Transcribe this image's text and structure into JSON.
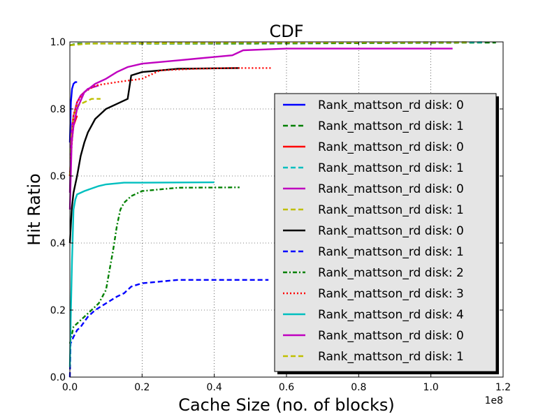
{
  "chart_data": {
    "type": "line",
    "title": "CDF",
    "xlabel": "Cache Size (no. of blocks)",
    "ylabel": "Hit Ratio",
    "x_exponent_label": "1e8",
    "xlim": [
      0,
      1.2
    ],
    "ylim": [
      0,
      1.0
    ],
    "x_ticks": [
      "0.0",
      "0.2",
      "0.4",
      "0.6",
      "0.8",
      "1.0",
      "1.2"
    ],
    "y_ticks": [
      "0.0",
      "0.2",
      "0.4",
      "0.6",
      "0.8",
      "1.0"
    ],
    "grid": true,
    "legend_position": "lower-right",
    "series": [
      {
        "name": "Rank_mattson_rd disk: 0",
        "color": "#0000ff",
        "dash": "solid",
        "points": [
          [
            0,
            0.7
          ],
          [
            0.003,
            0.82
          ],
          [
            0.006,
            0.86
          ],
          [
            0.01,
            0.875
          ],
          [
            0.015,
            0.88
          ],
          [
            0.02,
            0.88
          ]
        ]
      },
      {
        "name": "Rank_mattson_rd disk: 1",
        "color": "#008000",
        "dash": "dashed",
        "points": [
          [
            0,
            0.99
          ],
          [
            0.02,
            0.995
          ],
          [
            0.5,
            0.995
          ],
          [
            1.18,
            0.998
          ]
        ]
      },
      {
        "name": "Rank_mattson_rd disk: 0",
        "color": "#ff0000",
        "dash": "solid",
        "points": [
          [
            0,
            0.6
          ],
          [
            0.005,
            0.7
          ],
          [
            0.01,
            0.75
          ],
          [
            0.02,
            0.78
          ]
        ]
      },
      {
        "name": "Rank_mattson_rd disk: 1",
        "color": "#00bfbf",
        "dash": "dashed",
        "points": [
          [
            0,
            0.99
          ],
          [
            0.05,
            0.995
          ],
          [
            0.5,
            0.998
          ],
          [
            1.15,
            0.999
          ]
        ]
      },
      {
        "name": "Rank_mattson_rd disk: 0",
        "color": "#bf00bf",
        "dash": "solid",
        "points": [
          [
            0,
            0.55
          ],
          [
            0.003,
            0.7
          ],
          [
            0.006,
            0.75
          ],
          [
            0.01,
            0.78
          ],
          [
            0.02,
            0.82
          ],
          [
            0.03,
            0.84
          ],
          [
            0.05,
            0.86
          ],
          [
            0.08,
            0.87
          ]
        ]
      },
      {
        "name": "Rank_mattson_rd disk: 1",
        "color": "#bfbf00",
        "dash": "dashed",
        "points": [
          [
            0,
            0.6
          ],
          [
            0.005,
            0.72
          ],
          [
            0.01,
            0.78
          ],
          [
            0.02,
            0.81
          ],
          [
            0.04,
            0.82
          ],
          [
            0.06,
            0.83
          ],
          [
            0.085,
            0.83
          ]
        ]
      },
      {
        "name": "Rank_mattson_rd disk: 0",
        "color": "#000000",
        "dash": "solid",
        "points": [
          [
            0,
            0.4
          ],
          [
            0.005,
            0.5
          ],
          [
            0.01,
            0.55
          ],
          [
            0.02,
            0.6
          ],
          [
            0.03,
            0.66
          ],
          [
            0.04,
            0.7
          ],
          [
            0.05,
            0.73
          ],
          [
            0.07,
            0.77
          ],
          [
            0.1,
            0.8
          ],
          [
            0.13,
            0.815
          ],
          [
            0.16,
            0.83
          ],
          [
            0.17,
            0.9
          ],
          [
            0.2,
            0.91
          ],
          [
            0.25,
            0.915
          ],
          [
            0.3,
            0.92
          ],
          [
            0.47,
            0.922
          ]
        ]
      },
      {
        "name": "Rank_mattson_rd disk: 1",
        "color": "#0000ff",
        "dash": "dashed",
        "points": [
          [
            0,
            0.0
          ],
          [
            0.002,
            0.1
          ],
          [
            0.01,
            0.12
          ],
          [
            0.02,
            0.14
          ],
          [
            0.03,
            0.15
          ],
          [
            0.05,
            0.18
          ],
          [
            0.07,
            0.2
          ],
          [
            0.1,
            0.22
          ],
          [
            0.13,
            0.24
          ],
          [
            0.15,
            0.25
          ],
          [
            0.17,
            0.27
          ],
          [
            0.2,
            0.28
          ],
          [
            0.25,
            0.285
          ],
          [
            0.3,
            0.29
          ],
          [
            0.55,
            0.29
          ]
        ]
      },
      {
        "name": "Rank_mattson_rd disk: 2",
        "color": "#008000",
        "dash": "dashdot",
        "points": [
          [
            0,
            0.1
          ],
          [
            0.01,
            0.15
          ],
          [
            0.04,
            0.18
          ],
          [
            0.08,
            0.22
          ],
          [
            0.1,
            0.26
          ],
          [
            0.11,
            0.32
          ],
          [
            0.12,
            0.38
          ],
          [
            0.13,
            0.45
          ],
          [
            0.14,
            0.5
          ],
          [
            0.15,
            0.52
          ],
          [
            0.17,
            0.54
          ],
          [
            0.2,
            0.555
          ],
          [
            0.25,
            0.56
          ],
          [
            0.3,
            0.565
          ],
          [
            0.47,
            0.566
          ]
        ]
      },
      {
        "name": "Rank_mattson_rd disk: 3",
        "color": "#ff0000",
        "dash": "dotted",
        "points": [
          [
            0,
            0.6
          ],
          [
            0.01,
            0.78
          ],
          [
            0.02,
            0.82
          ],
          [
            0.04,
            0.85
          ],
          [
            0.07,
            0.87
          ],
          [
            0.1,
            0.875
          ],
          [
            0.13,
            0.88
          ],
          [
            0.2,
            0.89
          ],
          [
            0.25,
            0.915
          ],
          [
            0.35,
            0.92
          ],
          [
            0.45,
            0.922
          ],
          [
            0.56,
            0.922
          ]
        ]
      },
      {
        "name": "Rank_mattson_rd disk: 4",
        "color": "#00bfbf",
        "dash": "solid",
        "points": [
          [
            0,
            0.03
          ],
          [
            0.003,
            0.2
          ],
          [
            0.006,
            0.35
          ],
          [
            0.01,
            0.5
          ],
          [
            0.015,
            0.53
          ],
          [
            0.02,
            0.545
          ],
          [
            0.04,
            0.555
          ],
          [
            0.08,
            0.57
          ],
          [
            0.1,
            0.575
          ],
          [
            0.15,
            0.58
          ],
          [
            0.2,
            0.58
          ],
          [
            0.4,
            0.581
          ]
        ]
      },
      {
        "name": "Rank_mattson_rd disk: 0",
        "color": "#bf00bf",
        "dash": "solid",
        "points": [
          [
            0,
            0.5
          ],
          [
            0.005,
            0.7
          ],
          [
            0.01,
            0.75
          ],
          [
            0.02,
            0.8
          ],
          [
            0.04,
            0.85
          ],
          [
            0.07,
            0.875
          ],
          [
            0.1,
            0.89
          ],
          [
            0.13,
            0.91
          ],
          [
            0.16,
            0.925
          ],
          [
            0.2,
            0.935
          ],
          [
            0.25,
            0.94
          ],
          [
            0.3,
            0.945
          ],
          [
            0.35,
            0.95
          ],
          [
            0.4,
            0.955
          ],
          [
            0.45,
            0.96
          ],
          [
            0.48,
            0.975
          ],
          [
            0.6,
            0.98
          ],
          [
            1.06,
            0.98
          ]
        ]
      },
      {
        "name": "Rank_mattson_rd disk: 1",
        "color": "#bfbf00",
        "dash": "dashed",
        "points": [
          [
            0,
            0.99
          ],
          [
            0.05,
            0.995
          ],
          [
            0.5,
            0.998
          ],
          [
            1.1,
            0.999
          ]
        ]
      }
    ]
  }
}
